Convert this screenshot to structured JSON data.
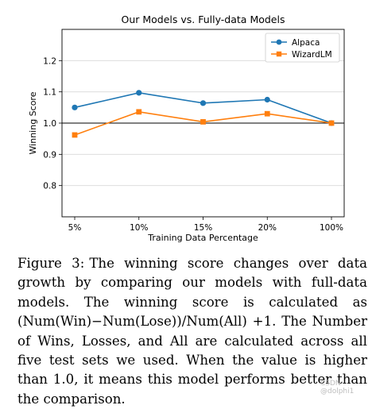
{
  "chart_data": {
    "type": "line",
    "title": "Our Models vs. Fully-data Models",
    "xlabel": "Training Data Percentage",
    "ylabel": "Winning Score",
    "categories": [
      "5%",
      "10%",
      "15%",
      "20%",
      "100%"
    ],
    "series": [
      {
        "name": "Alpaca",
        "values": [
          1.05,
          1.097,
          1.064,
          1.075,
          1.0
        ],
        "color": "#1f77b4",
        "marker": "circle"
      },
      {
        "name": "WizardLM",
        "values": [
          0.962,
          1.036,
          1.004,
          1.03,
          1.0
        ],
        "color": "#ff7f0e",
        "marker": "square"
      }
    ],
    "ylim": [
      0.7,
      1.3
    ],
    "yticks": [
      0.8,
      0.9,
      1.0,
      1.1,
      1.2
    ],
    "ytick_labels": [
      "0.8",
      "0.9",
      "1.0",
      "1.1",
      "1.2"
    ],
    "reference_line": 1.0,
    "grid": "horizontal",
    "legend_position": "top-right"
  },
  "caption": {
    "label": "Figure 3:",
    "text": "The winning score changes over data growth by comparing our models with full-data models. The winning score is calculated as (Num(Win)−Num(Lose))/Num(All) +1. The Number of Wins, Losses, and All are calculated across all five test sets we used. When the value is higher than 1.0, it means this model performs better than the comparison."
  },
  "watermark": "CSDN @dolphi1"
}
